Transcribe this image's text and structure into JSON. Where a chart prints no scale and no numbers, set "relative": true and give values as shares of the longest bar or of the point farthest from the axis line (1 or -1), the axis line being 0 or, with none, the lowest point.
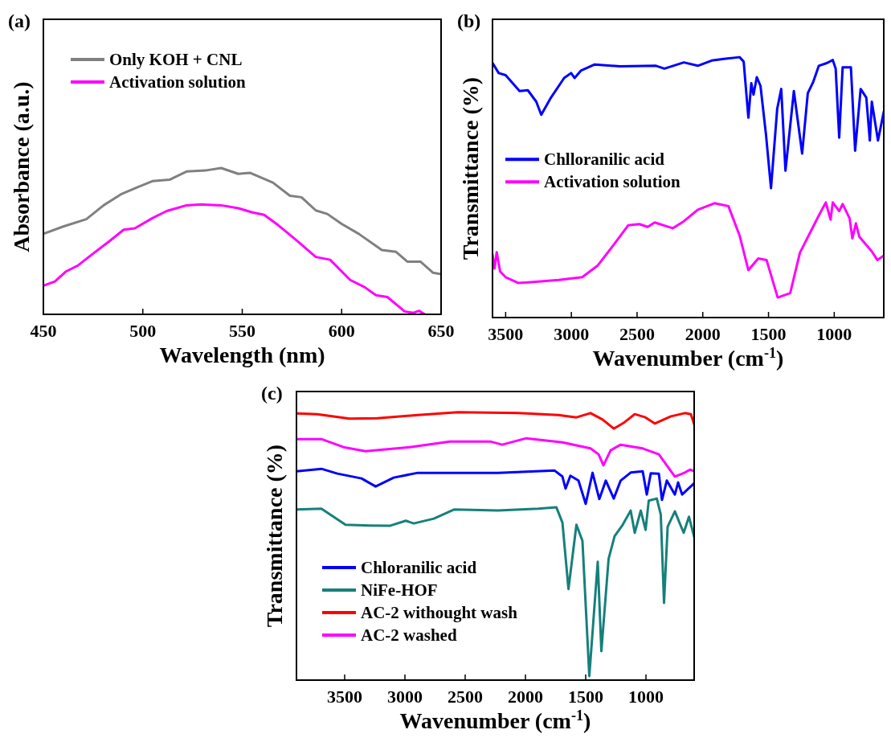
{
  "chart_data": [
    {
      "type": "line",
      "title": "(a)",
      "xlabel": "Wavelength (nm)",
      "ylabel": "Absorbance (a.u.)",
      "relative": true,
      "xlim": [
        450,
        650
      ],
      "xticks": [
        450,
        500,
        550,
        600,
        650
      ],
      "legend": "top left",
      "series": [
        {
          "name": "Only KOH + CNL",
          "color": "#808080",
          "x": [
            450,
            460,
            471.6,
            480.3,
            489,
            497.6,
            504.8,
            513.4,
            522,
            532,
            539.4,
            548,
            553.8,
            565.4,
            574,
            579.8,
            587,
            592.8,
            600,
            608.6,
            620.2,
            627.4,
            633,
            639.6,
            646,
            650
          ],
          "values": [
            0.55,
            0.6,
            0.65,
            0.745,
            0.82,
            0.87,
            0.91,
            0.92,
            0.976,
            0.984,
            1,
            0.96,
            0.967,
            0.9,
            0.81,
            0.8,
            0.71,
            0.686,
            0.618,
            0.55,
            0.44,
            0.427,
            0.36,
            0.36,
            0.284,
            0.275
          ]
        },
        {
          "name": "Activation solution",
          "color": "#ff00ff",
          "x": [
            450,
            455.8,
            461.5,
            467.3,
            474.5,
            483.2,
            490.4,
            496,
            504.8,
            512,
            522,
            529.3,
            539.4,
            548,
            555.2,
            561,
            568.2,
            576.9,
            587,
            594.2,
            604.3,
            611.5,
            617.3,
            623,
            631.7,
            636,
            638.9,
            641.8
          ],
          "values": [
            0.196,
            0.225,
            0.294,
            0.333,
            0.41,
            0.5,
            0.578,
            0.588,
            0.657,
            0.706,
            0.745,
            0.751,
            0.745,
            0.725,
            0.696,
            0.68,
            0.608,
            0.51,
            0.392,
            0.373,
            0.235,
            0.186,
            0.131,
            0.118,
            0.02,
            0.01,
            0.024,
            0
          ]
        }
      ]
    },
    {
      "type": "line",
      "title": "(b)",
      "xlabel": "Wavenumber (cm$^{-1}$)",
      "ylabel": "Transmittance (%)",
      "relative": true,
      "xlim": [
        3600,
        623
      ],
      "xticks": [
        3500,
        3000,
        2500,
        2000,
        1500,
        1000
      ],
      "legend": "left",
      "series": [
        {
          "name": "Chlloranilic acid",
          "color": "#0000ff",
          "x": [
            3600,
            3553,
            3500,
            3394,
            3331,
            3267,
            3229,
            3161,
            3055,
            3002,
            2975,
            2928,
            2822,
            2631,
            2356,
            2292,
            2144,
            2038,
            1932,
            1826,
            1720,
            1689,
            1653,
            1631,
            1614,
            1589,
            1561,
            1519,
            1481,
            1434,
            1403,
            1371,
            1307,
            1244,
            1201,
            1159,
            1117,
            1053,
            1011,
            989,
            962,
            936,
            873,
            841,
            799,
            756,
            729,
            714,
            667,
            623
          ],
          "values": [
            0.978,
            0.939,
            0.931,
            0.87,
            0.873,
            0.829,
            0.779,
            0.84,
            0.92,
            0.939,
            0.92,
            0.948,
            0.972,
            0.965,
            0.967,
            0.956,
            0.98,
            0.967,
            0.987,
            0.994,
            1,
            0.983,
            0.768,
            0.9,
            0.856,
            0.923,
            0.89,
            0.702,
            0.497,
            0.801,
            0.878,
            0.564,
            0.87,
            0.63,
            0.862,
            0.906,
            0.967,
            0.978,
            0.989,
            0.956,
            0.691,
            0.961,
            0.961,
            0.641,
            0.878,
            0.845,
            0.68,
            0.829,
            0.68,
            0.79
          ]
        },
        {
          "name": "Activation solution",
          "color": "#ff00ff",
          "x": [
            3600,
            3585,
            3568,
            3542,
            3500,
            3405,
            3309,
            3097,
            2917,
            2801,
            2674,
            2568,
            2483,
            2419,
            2366,
            2229,
            2144,
            2038,
            1911,
            1805,
            1720,
            1653,
            1578,
            1515,
            1430,
            1335,
            1261,
            1117,
            1064,
            1028,
            1011,
            962,
            936,
            883,
            862,
            835,
            809,
            714,
            672,
            623
          ],
          "values": [
            0.243,
            0.188,
            0.251,
            0.177,
            0.155,
            0.133,
            0.136,
            0.144,
            0.155,
            0.199,
            0.282,
            0.354,
            0.359,
            0.348,
            0.365,
            0.343,
            0.37,
            0.414,
            0.439,
            0.428,
            0.315,
            0.182,
            0.227,
            0.221,
            0.077,
            0.094,
            0.249,
            0.392,
            0.442,
            0.376,
            0.442,
            0.409,
            0.436,
            0.381,
            0.304,
            0.362,
            0.31,
            0.254,
            0.221,
            0.238
          ]
        }
      ]
    },
    {
      "type": "line",
      "title": "(c)",
      "xlabel": "Wavenumber (cm$^{-1}$)",
      "ylabel": "Transmittance (%)",
      "relative": true,
      "xlim": [
        3900,
        600
      ],
      "xticks": [
        3500,
        3000,
        2500,
        2000,
        1500,
        1000
      ],
      "legend": "bottom left",
      "series": [
        {
          "name": "Chloranilic acid",
          "color": "#0000ff",
          "x": [
            3900,
            3693,
            3560,
            3360,
            3243,
            3093,
            2893,
            2227,
            1760,
            1693,
            1667,
            1627,
            1560,
            1500,
            1443,
            1387,
            1333,
            1267,
            1210,
            1127,
            1027,
            993,
            960,
            893,
            867,
            827,
            760,
            733,
            700,
            600
          ],
          "values": [
            0.78,
            0.789,
            0.771,
            0.753,
            0.723,
            0.756,
            0.774,
            0.774,
            0.783,
            0.76,
            0.715,
            0.763,
            0.745,
            0.658,
            0.774,
            0.676,
            0.745,
            0.678,
            0.745,
            0.775,
            0.78,
            0.693,
            0.772,
            0.771,
            0.673,
            0.745,
            0.693,
            0.738,
            0.693,
            0.735
          ]
        },
        {
          "name": "NiFe-HOF",
          "color": "#16807b",
          "x": [
            3900,
            3693,
            3493,
            3293,
            3127,
            2993,
            2927,
            2760,
            2593,
            2227,
            1893,
            1743,
            1693,
            1643,
            1577,
            1527,
            1470,
            1400,
            1370,
            1310,
            1260,
            1193,
            1127,
            1093,
            1043,
            1003,
            977,
            910,
            877,
            850,
            820,
            760,
            687,
            643,
            600
          ],
          "values": [
            0.637,
            0.64,
            0.58,
            0.577,
            0.576,
            0.595,
            0.585,
            0.603,
            0.637,
            0.633,
            0.64,
            0.645,
            0.588,
            0.34,
            0.58,
            0.52,
            0.015,
            0.442,
            0.108,
            0.453,
            0.538,
            0.58,
            0.633,
            0.55,
            0.633,
            0.561,
            0.67,
            0.678,
            0.618,
            0.288,
            0.573,
            0.63,
            0.55,
            0.61,
            0.535
          ]
        },
        {
          "name": "AC-2 withought wash",
          "color": "#ff0000",
          "x": [
            3900,
            3727,
            3460,
            3227,
            2893,
            2560,
            2060,
            1727,
            1577,
            1460,
            1360,
            1267,
            1177,
            1093,
            1010,
            927,
            793,
            677,
            627,
            600
          ],
          "values": [
            0.996,
            0.993,
            0.976,
            0.978,
            0.99,
            1,
            0.997,
            0.99,
            0.981,
            0.997,
            0.973,
            0.939,
            0.963,
            0.993,
            0.982,
            0.958,
            0.985,
            0.997,
            0.993,
            0.955
          ]
        },
        {
          "name": "AC-2 washed",
          "color": "#ff00ff",
          "x": [
            3900,
            3693,
            3510,
            3327,
            2960,
            2627,
            2293,
            2193,
            1993,
            1693,
            1460,
            1393,
            1353,
            1293,
            1210,
            1027,
            893,
            760,
            677,
            633,
            600
          ],
          "values": [
            0.9,
            0.9,
            0.87,
            0.855,
            0.87,
            0.891,
            0.891,
            0.879,
            0.903,
            0.888,
            0.865,
            0.843,
            0.802,
            0.858,
            0.879,
            0.865,
            0.843,
            0.76,
            0.775,
            0.786,
            0.78
          ]
        }
      ]
    }
  ]
}
